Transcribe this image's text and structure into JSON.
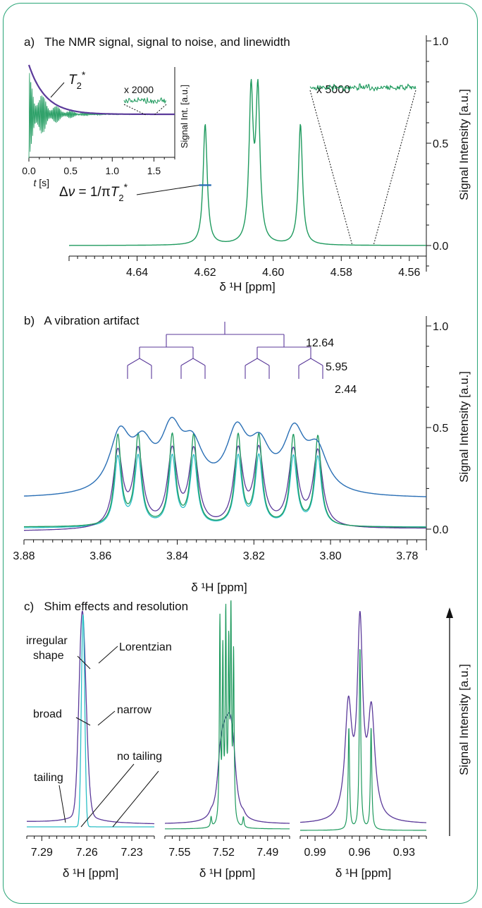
{
  "colors": {
    "frame": "#2aa577",
    "green": "#1f9a5e",
    "purple": "#5b3a9a",
    "blue": "#2a6fb5",
    "cyan": "#2bbfc6",
    "text": "#111111"
  },
  "panel_a": {
    "label": "a)",
    "title": "The NMR signal, signal to noise, and linewidth"
  },
  "panel_b": {
    "label": "b)",
    "title": "A vibration artifact"
  },
  "panel_c": {
    "label": "c)",
    "title": "Shim effects and resolution"
  },
  "chart_data": [
    {
      "id": "a-main",
      "type": "line",
      "xlabel": "δ ¹H [ppm]",
      "ylabel": "Signal Intensity [a.u.]",
      "xlim": [
        4.66,
        4.555
      ],
      "xticks": [
        "4.64",
        "4.62",
        "4.60",
        "4.58",
        "4.56"
      ],
      "xtick_values": [
        4.64,
        4.62,
        4.6,
        4.58,
        4.56
      ],
      "ylim": [
        -0.1,
        1.0
      ],
      "yticks": [
        "0.0",
        "0.5",
        "1.0"
      ],
      "ytick_values": [
        0.0,
        0.5,
        1.0
      ],
      "series": [
        {
          "peaks": [
            {
              "center": 4.62,
              "height": 0.59
            },
            {
              "center": 4.6065,
              "height": 0.74
            },
            {
              "center": 4.6045,
              "height": 0.74
            },
            {
              "center": 4.592,
              "height": 0.59
            }
          ]
        }
      ],
      "annotations": [
        "Δν = 1/πT₂*",
        "x 5000"
      ]
    },
    {
      "id": "a-inset",
      "type": "line",
      "xlabel": "t [s]",
      "ylabel": "Signal Int. [a.u.]",
      "xlim": [
        0.0,
        1.75
      ],
      "xticks": [
        "0.0",
        "0.5",
        "1.0",
        "1.5"
      ],
      "xtick_values": [
        0.0,
        0.5,
        1.0,
        1.5
      ],
      "annotations": [
        "T₂*",
        "x 2000"
      ]
    },
    {
      "id": "b-main",
      "type": "line",
      "xlabel": "δ ¹H [ppm]",
      "ylabel": "Signal Intensity [a.u.]",
      "xlim": [
        3.88,
        3.775
      ],
      "xticks": [
        "3.88",
        "3.86",
        "3.84",
        "3.82",
        "3.80",
        "3.78"
      ],
      "xtick_values": [
        3.88,
        3.86,
        3.84,
        3.82,
        3.8,
        3.78
      ],
      "ylim": [
        -0.05,
        1.0
      ],
      "yticks": [
        "0.0",
        "0.5",
        "1.0"
      ],
      "ytick_values": [
        0.0,
        0.5,
        1.0
      ],
      "peak_positions": [
        3.8555,
        3.8502,
        3.8413,
        3.8357,
        3.8241,
        3.8187,
        3.8097,
        3.8033
      ],
      "coupling_constants": [
        "12.64",
        "5.95",
        "2.44"
      ]
    },
    {
      "id": "c-1",
      "type": "line",
      "xlabel": "δ ¹H [ppm]",
      "xlim": [
        7.3,
        7.215
      ],
      "xticks": [
        "7.29",
        "7.26",
        "7.23"
      ],
      "xtick_values": [
        7.29,
        7.26,
        7.23
      ],
      "annotations": [
        "irregular shape",
        "Lorentzian",
        "broad",
        "narrow",
        "tailing",
        "no tailing"
      ]
    },
    {
      "id": "c-2",
      "type": "line",
      "xlabel": "δ ¹H [ppm]",
      "xlim": [
        7.56,
        7.475
      ],
      "xticks": [
        "7.55",
        "7.52",
        "7.49"
      ],
      "xtick_values": [
        7.55,
        7.52,
        7.49
      ]
    },
    {
      "id": "c-3",
      "type": "line",
      "xlabel": "δ ¹H [ppm]",
      "ylabel": "Signal Intensity [a.u.]",
      "xlim": [
        1.0,
        0.915
      ],
      "xticks": [
        "0.99",
        "0.96",
        "0.93"
      ],
      "xtick_values": [
        0.99,
        0.96,
        0.93
      ]
    }
  ]
}
